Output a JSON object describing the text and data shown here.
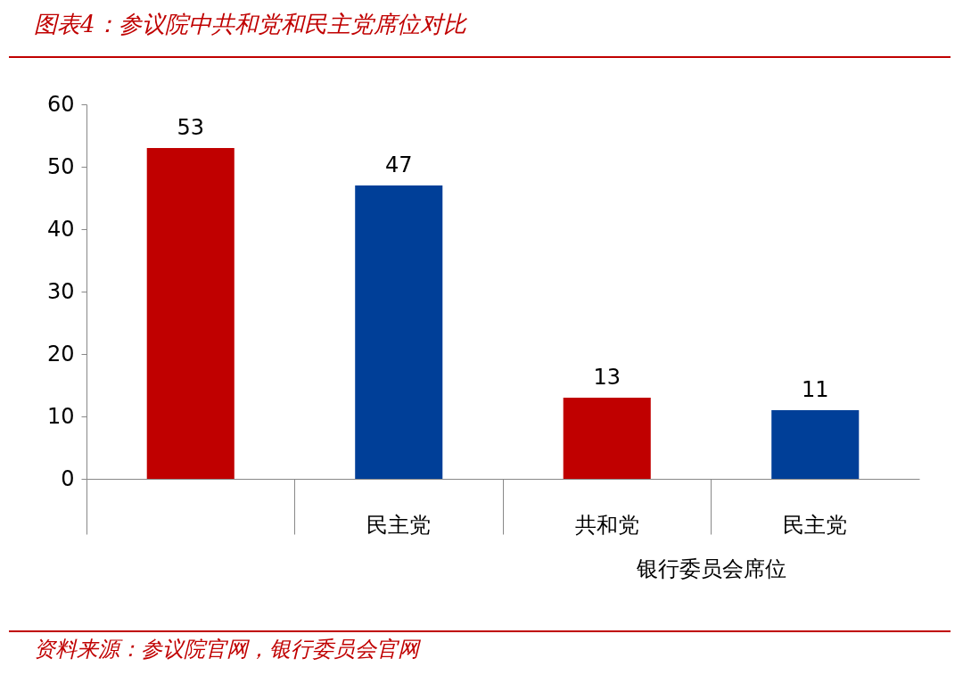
{
  "chart_data": {
    "type": "bar",
    "title": "图表4：参议院中共和党和民主党席位对比",
    "categories": [
      null,
      "民主党",
      "共和党",
      "民主党"
    ],
    "values": [
      53,
      47,
      13,
      11
    ],
    "colors": [
      "#c00000",
      "#003f98",
      "#c00000",
      "#003f98"
    ],
    "ylim": [
      0,
      60
    ],
    "yticks": [
      0,
      10,
      20,
      30,
      40,
      50,
      60
    ],
    "grid": false,
    "data_labels": true,
    "annotations": [
      "银行委员会席位",
      "资料来源：参议院官网，银行委员会官网"
    ]
  }
}
